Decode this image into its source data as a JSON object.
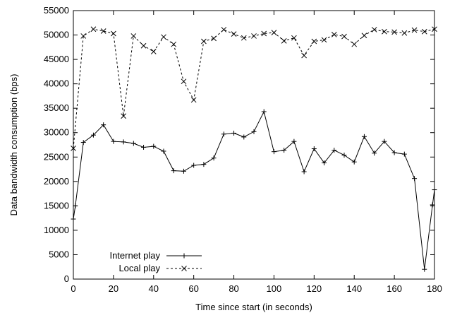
{
  "chart_data": {
    "type": "line",
    "xlabel": "Time since start (in seconds)",
    "ylabel": "Data bandwidth consumption (bps)",
    "xlim": [
      0,
      180
    ],
    "ylim": [
      0,
      55000
    ],
    "xticks": [
      0,
      20,
      40,
      60,
      80,
      100,
      120,
      140,
      160,
      180
    ],
    "yticks": [
      0,
      5000,
      10000,
      15000,
      20000,
      25000,
      30000,
      35000,
      40000,
      45000,
      50000,
      55000
    ],
    "grid": false,
    "legend_position": "bottom-left",
    "series": [
      {
        "name": "Internet play",
        "style": "solid",
        "marker": "plus",
        "color": "#000000",
        "x": [
          0,
          1,
          5,
          10,
          15,
          20,
          25,
          30,
          35,
          40,
          45,
          50,
          55,
          60,
          65,
          70,
          75,
          80,
          85,
          90,
          95,
          100,
          105,
          110,
          115,
          120,
          125,
          130,
          135,
          140,
          145,
          150,
          155,
          160,
          165,
          170,
          175,
          179,
          180
        ],
        "y": [
          12300,
          15000,
          28000,
          29500,
          31600,
          28200,
          28100,
          27800,
          27000,
          27200,
          26200,
          22200,
          22100,
          23300,
          23500,
          24800,
          29700,
          29900,
          29100,
          30200,
          34300,
          26100,
          26400,
          28200,
          22000,
          26700,
          23800,
          26400,
          25400,
          24000,
          29200,
          25800,
          28200,
          25900,
          25600,
          20600,
          2000,
          15200,
          18300
        ]
      },
      {
        "name": "Local play",
        "style": "dashed",
        "marker": "cross",
        "color": "#000000",
        "x": [
          0,
          5,
          10,
          15,
          20,
          25,
          30,
          35,
          40,
          45,
          50,
          55,
          60,
          65,
          70,
          75,
          80,
          85,
          90,
          95,
          100,
          105,
          110,
          115,
          120,
          125,
          130,
          135,
          140,
          145,
          150,
          155,
          160,
          165,
          170,
          175,
          180
        ],
        "y": [
          26800,
          49800,
          51200,
          50800,
          50300,
          33400,
          49800,
          47800,
          46600,
          49600,
          48100,
          40500,
          36700,
          48700,
          49300,
          51100,
          50200,
          49400,
          49800,
          50300,
          50500,
          48800,
          49400,
          45800,
          48700,
          49000,
          50100,
          49700,
          48100,
          49900,
          51100,
          50700,
          50600,
          50400,
          51000,
          50700,
          51200
        ]
      }
    ]
  }
}
